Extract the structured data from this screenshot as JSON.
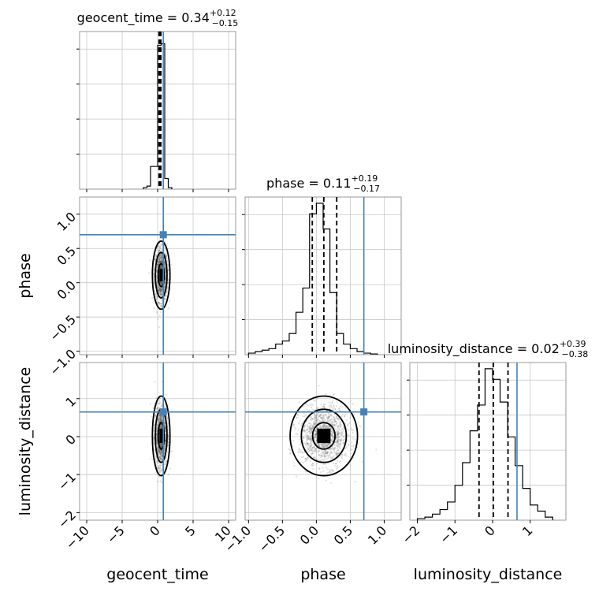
{
  "chart_data": {
    "type": "corner",
    "parameters": [
      "geocent_time",
      "phase",
      "luminosity_distance"
    ],
    "axis_labels": [
      "geocent_time",
      "phase",
      "luminosity_distance"
    ],
    "titles": [
      {
        "param": "geocent_time",
        "name": "geocent_time",
        "median": "0.34",
        "plus": "+0.12",
        "minus": "−0.15"
      },
      {
        "param": "phase",
        "name": "phase",
        "median": "0.11",
        "plus": "+0.19",
        "minus": "−0.17"
      },
      {
        "param": "luminosity_distance",
        "name": "luminosity_distance",
        "median": "0.02",
        "plus": "+0.39",
        "minus": "−0.38"
      }
    ],
    "ranges": {
      "geocent_time": [
        -11,
        11
      ],
      "phase": [
        -1.05,
        1.25
      ],
      "luminosity_distance": [
        -2.2,
        1.95
      ]
    },
    "ticks": {
      "geocent_time": {
        "values": [
          -10,
          -5,
          0,
          5,
          10
        ],
        "labels": [
          "−10",
          "−5",
          "0",
          "5",
          "10"
        ]
      },
      "phase_x": {
        "values": [
          -1.0,
          -0.5,
          0.0,
          0.5,
          1.0
        ],
        "labels": [
          "−1.0",
          "−0.5",
          "0.0",
          "0.5",
          "1.0"
        ]
      },
      "phase_y": {
        "values": [
          -1.0,
          -0.5,
          0.0,
          0.5,
          1.0
        ],
        "labels": [
          "−1.0",
          "−0.5",
          "0.0",
          "0.5",
          "1.0"
        ]
      },
      "luminosity_distance": {
        "values": [
          -2,
          -1,
          0,
          1
        ],
        "labels": [
          "−2",
          "−1",
          "0",
          "1"
        ]
      }
    },
    "truths": {
      "geocent_time": 0.8,
      "phase": 0.7,
      "luminosity_distance": 0.65
    },
    "quantiles": {
      "geocent_time": [
        0.19,
        0.34,
        0.46
      ],
      "phase": [
        -0.06,
        0.11,
        0.3
      ],
      "luminosity_distance": [
        -0.36,
        0.02,
        0.41
      ]
    },
    "histograms": {
      "geocent_time": {
        "edges": [
          -2,
          -1.5,
          -1,
          -0.5,
          0,
          0.5,
          1,
          1.5,
          2
        ],
        "counts": [
          0.01,
          0.02,
          0.15,
          0.15,
          0.95,
          0.96,
          0.07,
          0.01
        ]
      },
      "phase": {
        "edges": [
          -1.0,
          -0.9,
          -0.8,
          -0.7,
          -0.6,
          -0.5,
          -0.4,
          -0.3,
          -0.2,
          -0.1,
          0.0,
          0.1,
          0.2,
          0.3,
          0.4,
          0.5,
          0.6,
          0.7,
          0.8,
          0.9
        ],
        "counts": [
          0.01,
          0.02,
          0.03,
          0.04,
          0.07,
          0.09,
          0.14,
          0.28,
          0.44,
          0.93,
          1.0,
          0.83,
          0.41,
          0.14,
          0.07,
          0.04,
          0.02,
          0.01,
          0.005
        ]
      },
      "luminosity_distance": {
        "edges": [
          -2.0,
          -1.8,
          -1.6,
          -1.4,
          -1.2,
          -1.0,
          -0.8,
          -0.6,
          -0.4,
          -0.2,
          0.0,
          0.2,
          0.4,
          0.6,
          0.8,
          1.0,
          1.2,
          1.4,
          1.6
        ],
        "counts": [
          0.01,
          0.02,
          0.04,
          0.07,
          0.12,
          0.23,
          0.38,
          0.59,
          0.76,
          1.0,
          0.93,
          0.78,
          0.55,
          0.36,
          0.21,
          0.1,
          0.06,
          0.02
        ]
      }
    },
    "distributions": {
      "geocent_time": {
        "mean": 0.5,
        "sd": 0.45
      },
      "phase": {
        "mean": 0.11,
        "sd": 0.18
      },
      "luminosity_distance": {
        "mean": 0.02,
        "sd": 0.38
      }
    },
    "contour_levels": [
      "39.3%",
      "86.5%",
      "98.9%"
    ],
    "grid": true,
    "colors": {
      "truth": "#4682b4",
      "lines": "#000000",
      "scatter": "#555555",
      "grid": "#c8c8c8"
    }
  }
}
